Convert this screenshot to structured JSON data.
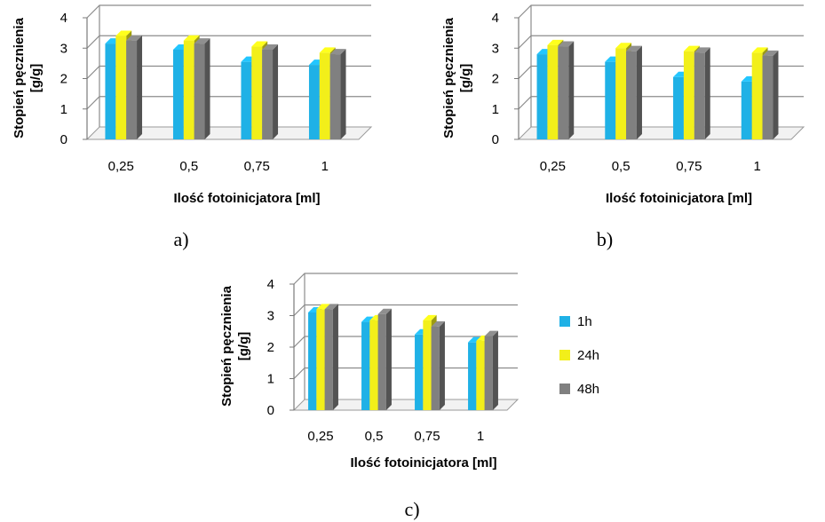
{
  "colors": {
    "1h": "#1fb1e6",
    "24h": "#f2ef1a",
    "48h": "#808080"
  },
  "legend": [
    {
      "label": "1h",
      "color": "#1fb1e6"
    },
    {
      "label": "24h",
      "color": "#f2ef1a"
    },
    {
      "label": "48h",
      "color": "#808080"
    }
  ],
  "chart_data": [
    {
      "type": "bar",
      "panel_label": "a)",
      "xlabel": "Ilość fotoinicjatora [ml]",
      "ylabel": [
        "Stopień pęcznienia",
        "[g/g]"
      ],
      "categories": [
        "0,25",
        "0,5",
        "0,75",
        "1"
      ],
      "yticks": [
        "0",
        "1",
        "2",
        "3",
        "4"
      ],
      "ylim": [
        0,
        4
      ],
      "grid": true,
      "series": [
        {
          "name": "1h",
          "values": [
            3.15,
            2.95,
            2.55,
            2.45
          ]
        },
        {
          "name": "24h",
          "values": [
            3.4,
            3.25,
            3.05,
            2.85
          ]
        },
        {
          "name": "48h",
          "values": [
            3.25,
            3.15,
            2.95,
            2.8
          ]
        }
      ]
    },
    {
      "type": "bar",
      "panel_label": "b)",
      "xlabel": "Ilość fotoinicjatora [ml]",
      "ylabel": [
        "Stopień pęcznienia",
        "[g/g]"
      ],
      "categories": [
        "0,25",
        "0,5",
        "0,75",
        "1"
      ],
      "yticks": [
        "0",
        "1",
        "2",
        "3",
        "4"
      ],
      "ylim": [
        0,
        4
      ],
      "grid": true,
      "series": [
        {
          "name": "1h",
          "values": [
            2.8,
            2.55,
            2.05,
            1.9
          ]
        },
        {
          "name": "24h",
          "values": [
            3.1,
            3.0,
            2.9,
            2.85
          ]
        },
        {
          "name": "48h",
          "values": [
            3.05,
            2.9,
            2.85,
            2.75
          ]
        }
      ]
    },
    {
      "type": "bar",
      "panel_label": "c)",
      "xlabel": "Ilość fotoinicjatora [ml]",
      "ylabel": [
        "Stopień pęcznienia",
        "[g/g]"
      ],
      "categories": [
        "0,25",
        "0,5",
        "0,75",
        "1"
      ],
      "yticks": [
        "0",
        "1",
        "2",
        "3",
        "4"
      ],
      "ylim": [
        0,
        4
      ],
      "grid": true,
      "legend_position": "right",
      "series": [
        {
          "name": "1h",
          "values": [
            3.1,
            2.8,
            2.4,
            2.15
          ]
        },
        {
          "name": "24h",
          "values": [
            3.2,
            2.85,
            2.85,
            2.2
          ]
        },
        {
          "name": "48h",
          "values": [
            3.2,
            3.05,
            2.65,
            2.35
          ]
        }
      ]
    }
  ]
}
